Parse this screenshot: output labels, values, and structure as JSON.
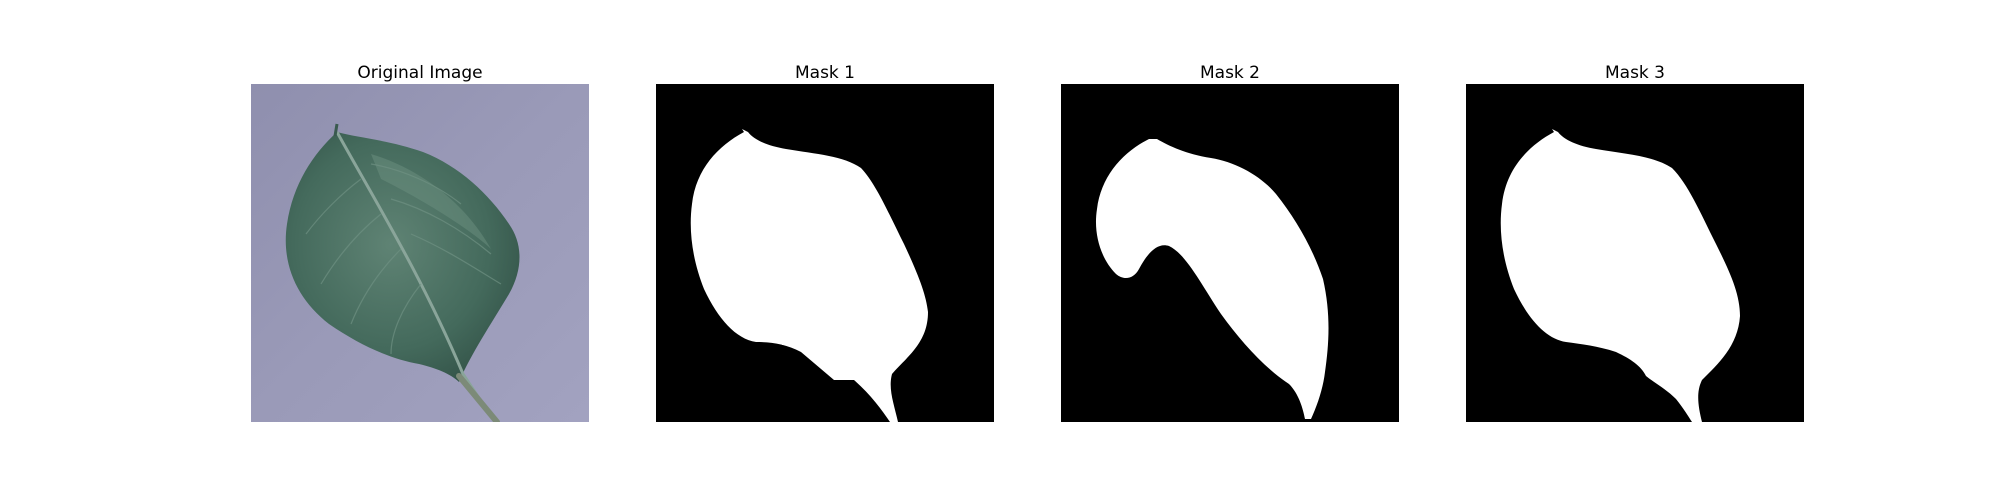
{
  "figure": {
    "panels": [
      {
        "title": "Original Image",
        "kind": "photo"
      },
      {
        "title": "Mask 1",
        "kind": "mask"
      },
      {
        "title": "Mask 2",
        "kind": "mask"
      },
      {
        "title": "Mask 3",
        "kind": "mask"
      }
    ]
  },
  "colors": {
    "background": "#ffffff",
    "mask_background": "#000000",
    "mask_foreground": "#ffffff",
    "photo_backdrop": "#9595b4",
    "leaf_dark": "#2f4f45",
    "leaf_light": "#5d7f70",
    "leaf_vein": "#8aa59a"
  }
}
